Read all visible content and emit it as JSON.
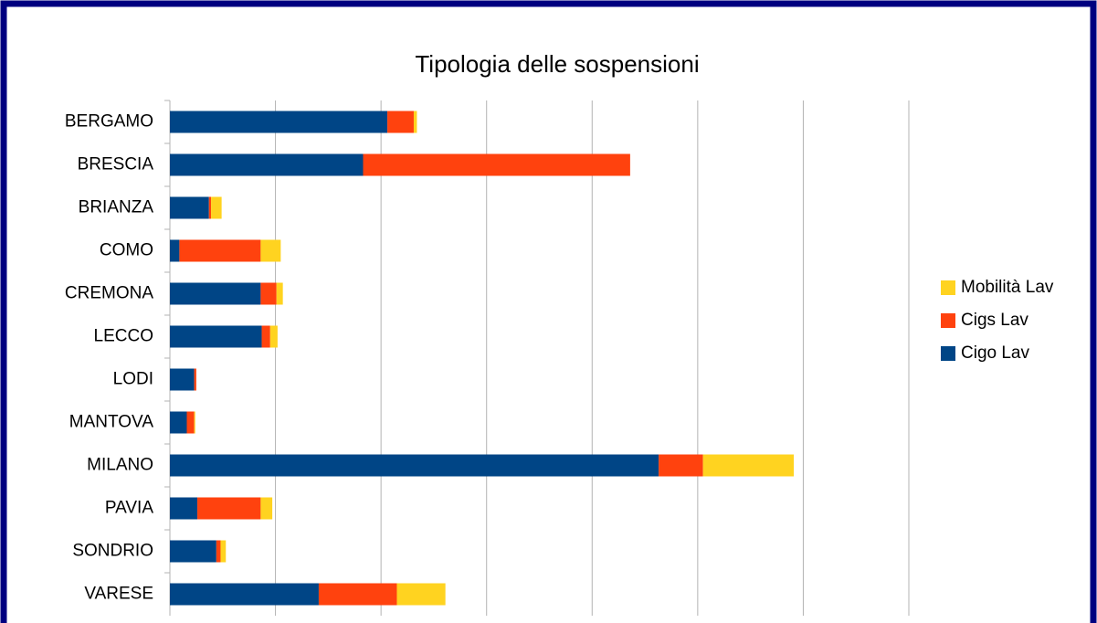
{
  "chart_data": {
    "type": "bar",
    "orientation": "horizontal",
    "stacked": true,
    "title": "Tipologia delle sospensioni",
    "categories": [
      "BERGAMO",
      "BRESCIA",
      "BRIANZA",
      "COMO",
      "CREMONA",
      "LECCO",
      "LODI",
      "MANTOVA",
      "MILANO",
      "PAVIA",
      "SONDRIO",
      "VARESE"
    ],
    "series": [
      {
        "name": "Cigo Lav",
        "color": "#004586",
        "values": [
          2.06,
          1.83,
          0.37,
          0.09,
          0.86,
          0.87,
          0.23,
          0.16,
          4.63,
          0.26,
          0.44,
          1.41
        ]
      },
      {
        "name": "Cigs Lav",
        "color": "#ff420e",
        "values": [
          0.25,
          2.53,
          0.02,
          0.77,
          0.15,
          0.08,
          0.02,
          0.07,
          0.42,
          0.6,
          0.04,
          0.74
        ]
      },
      {
        "name": "Mobilità Lav",
        "color": "#ffd320",
        "values": [
          0.03,
          0,
          0.1,
          0.19,
          0.06,
          0.07,
          0,
          0.01,
          0.86,
          0.11,
          0.05,
          0.46
        ]
      }
    ],
    "xlim": [
      0,
      7
    ],
    "xticks": [
      0,
      1,
      2,
      3,
      4,
      5,
      6,
      7
    ],
    "grid": true,
    "legend": "right"
  }
}
